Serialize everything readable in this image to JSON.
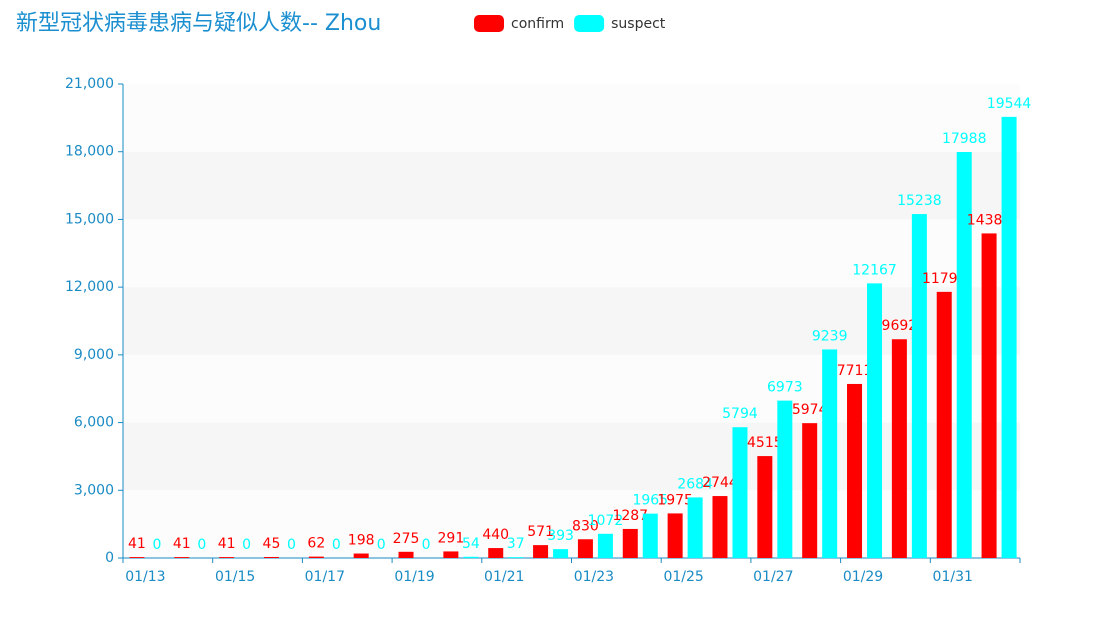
{
  "chart_data": {
    "type": "bar",
    "title": "新型冠状病毒患病与疑似人数-- Zhou",
    "categories": [
      "01/13",
      null,
      "01/15",
      null,
      "01/17",
      null,
      "01/19",
      null,
      "01/21",
      null,
      "01/23",
      null,
      "01/25",
      null,
      "01/27",
      null,
      "01/29",
      null,
      "01/31",
      null
    ],
    "series": [
      {
        "name": "confirm",
        "color": "#ff0000",
        "values": [
          41,
          41,
          41,
          45,
          62,
          198,
          275,
          291,
          440,
          571,
          830,
          1287,
          1975,
          2744,
          4515,
          5974,
          7711,
          9692,
          11791,
          14380
        ]
      },
      {
        "name": "suspect",
        "color": "#00ffff",
        "values": [
          0,
          0,
          0,
          0,
          0,
          0,
          0,
          54,
          37,
          393,
          1072,
          1965,
          2684,
          5794,
          6973,
          9239,
          12167,
          15238,
          17988,
          19544
        ]
      }
    ],
    "ylim": [
      0,
      21000
    ],
    "yticks": [
      0,
      {
        "value": 3000,
        "label": "3,000"
      },
      {
        "value": 6000,
        "label": "6,000"
      },
      {
        "value": 9000,
        "label": "9,000"
      },
      {
        "value": 12000,
        "label": "12,000"
      },
      {
        "value": 15000,
        "label": "15,000"
      },
      {
        "value": 18000,
        "label": "18,000"
      },
      {
        "value": 21000,
        "label": "21,000"
      }
    ],
    "legend": "top"
  }
}
